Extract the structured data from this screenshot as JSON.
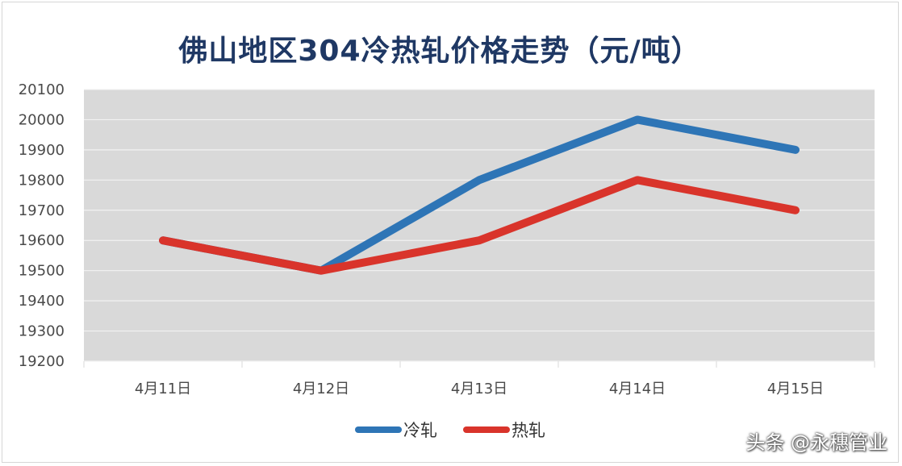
{
  "chart_data": {
    "type": "line",
    "title": "佛山地区304冷热轧价格走势（元/吨）",
    "xlabel": "",
    "ylabel": "",
    "categories": [
      "4月11日",
      "4月12日",
      "4月13日",
      "4月14日",
      "4月15日"
    ],
    "y_ticks": [
      "20100",
      "20000",
      "19900",
      "19800",
      "19700",
      "19600",
      "19500",
      "19400",
      "19300",
      "19200"
    ],
    "ylim": [
      19200,
      20100
    ],
    "grid": true,
    "legend_position": "bottom",
    "series": [
      {
        "name": "冷轧",
        "color": "#2e75b6",
        "values": [
          19600,
          19500,
          19800,
          20000,
          19900
        ]
      },
      {
        "name": "热轧",
        "color": "#d9342b",
        "values": [
          19600,
          19500,
          19600,
          19800,
          19700
        ]
      }
    ]
  },
  "watermark": "头条 @永穗管业"
}
